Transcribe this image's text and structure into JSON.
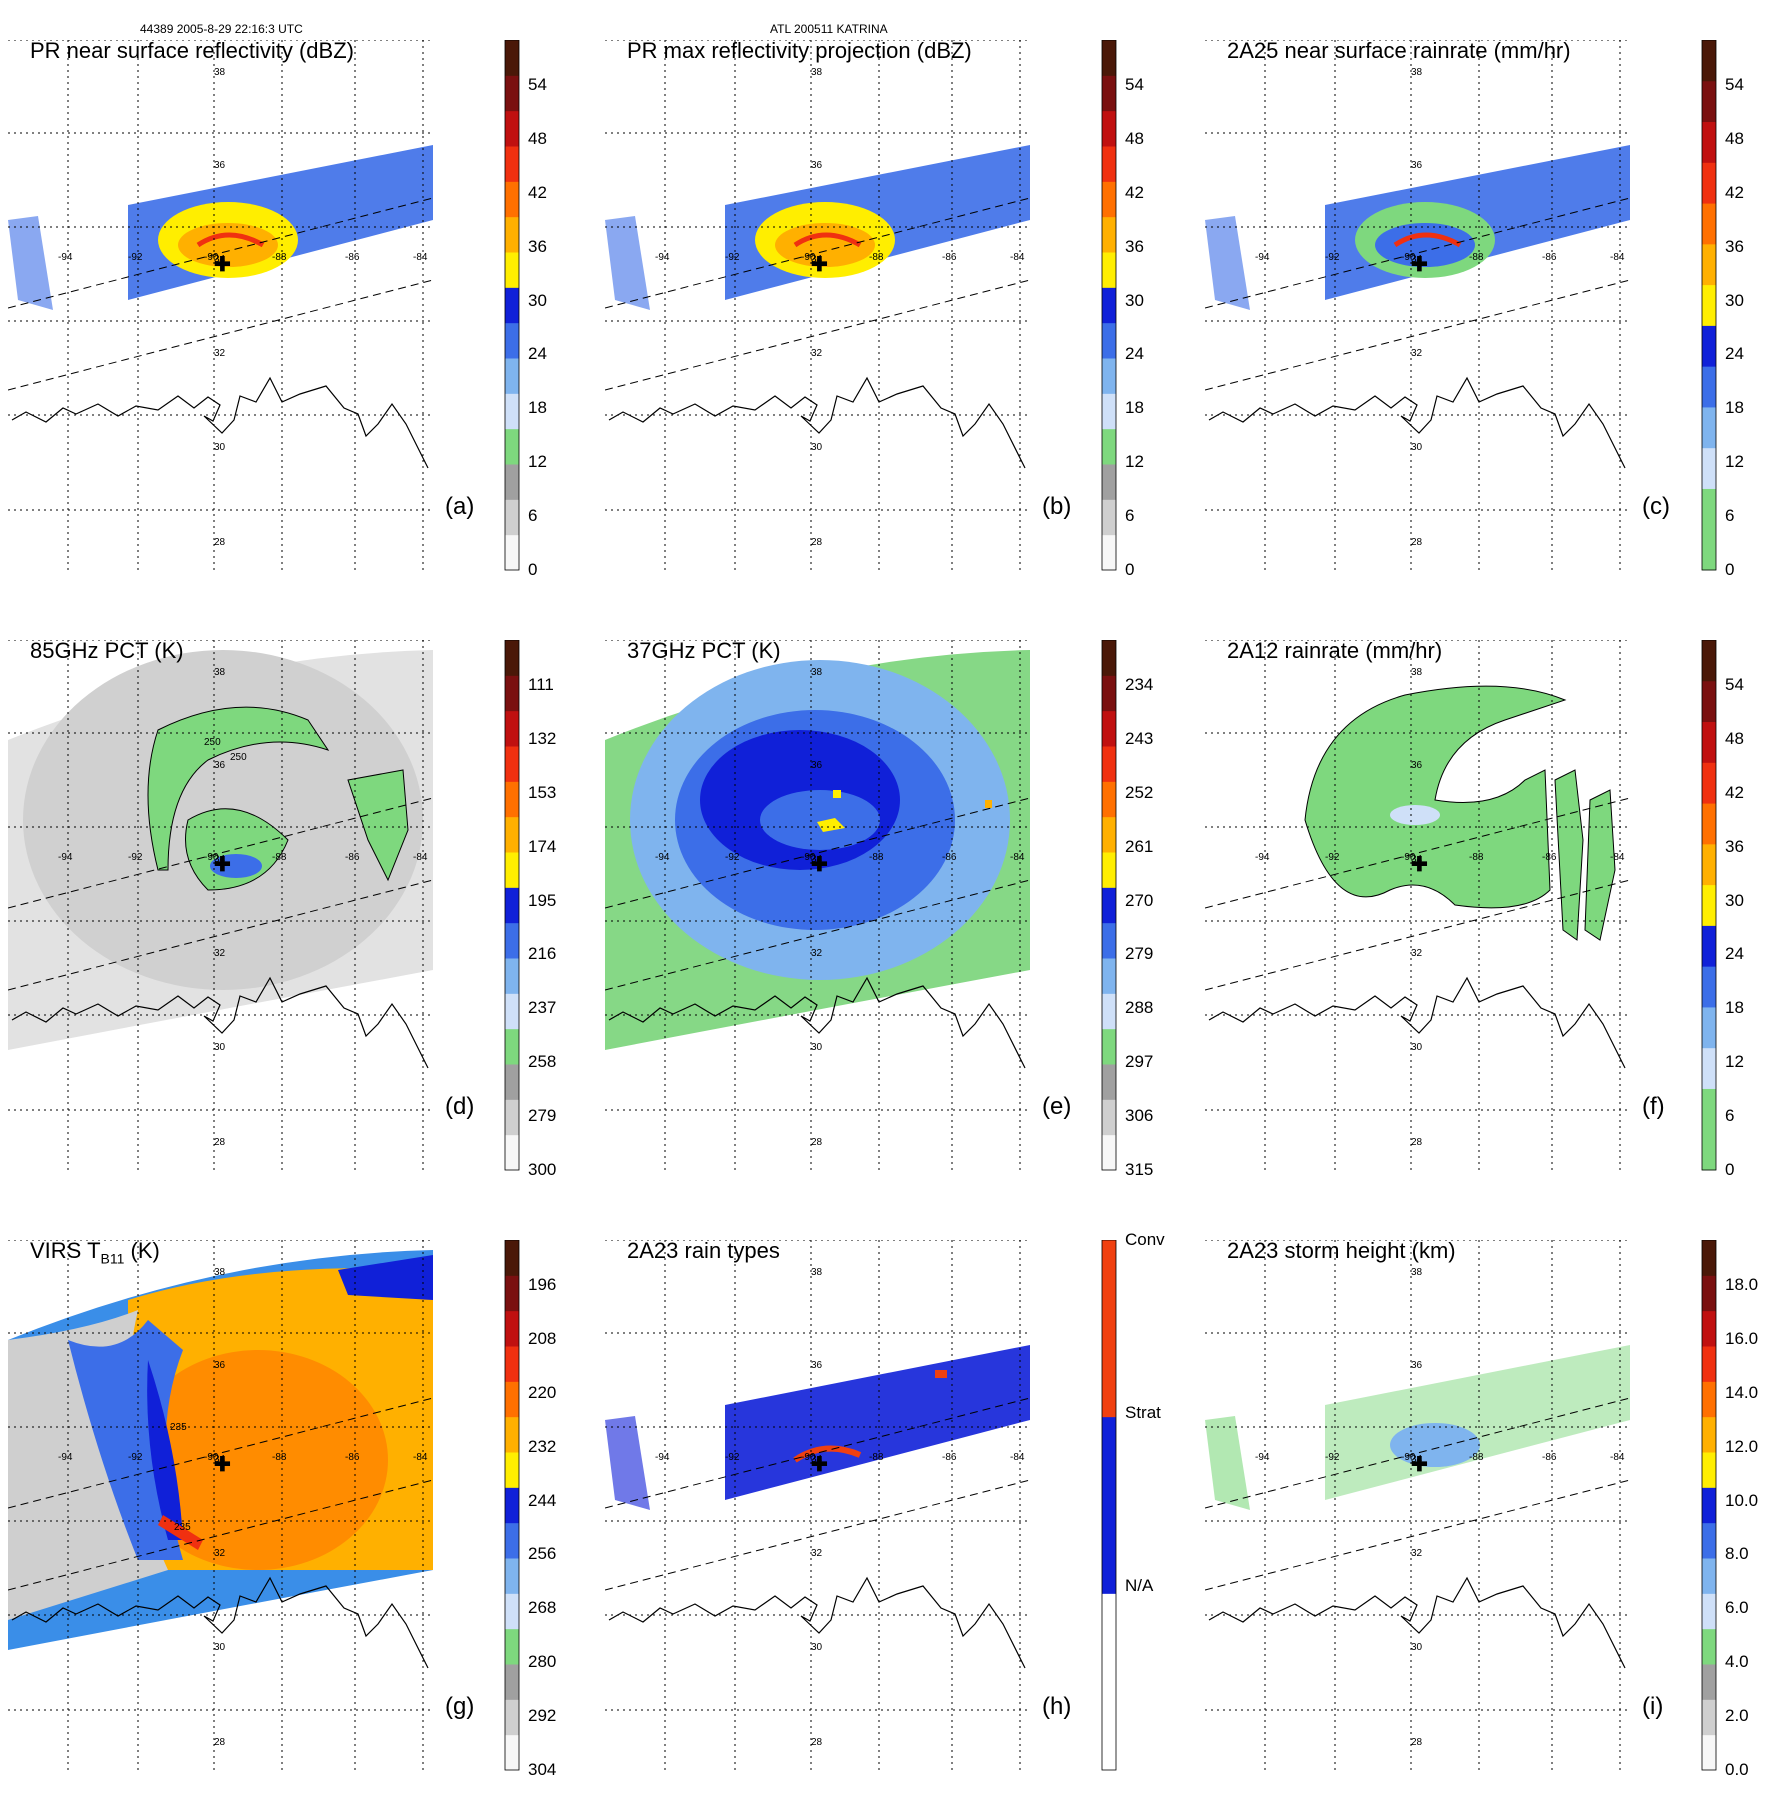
{
  "header": {
    "left": "44389 2005-8-29 22:16:3 UTC",
    "center": "ATL 200511 KATRINA"
  },
  "map": {
    "lat_labels": [
      "38",
      "36",
      "34",
      "32",
      "30",
      "28"
    ],
    "lon_labels": [
      "-94",
      "-92",
      "-90",
      "-88",
      "-86",
      "-84"
    ]
  },
  "panels": [
    {
      "id": "a",
      "title": "PR near surface reflectivity (dBZ)",
      "label": "(a)",
      "field": "swath",
      "ticks": [
        "54",
        "48",
        "42",
        "36",
        "30",
        "24",
        "18",
        "12",
        "6",
        "0"
      ],
      "colorbar": [
        "#f7f7f7",
        "#cfcfcf",
        "#a0a0a0",
        "#7ed87e",
        "#cfe0f8",
        "#7fb4ee",
        "#3c6ee8",
        "#1020d8",
        "#ffee00",
        "#ffb000",
        "#ff7000",
        "#f03010",
        "#c01010",
        "#7a1010",
        "#4a1808"
      ]
    },
    {
      "id": "b",
      "title": "PR max reflectivity projection (dBZ)",
      "label": "(b)",
      "field": "swath",
      "ticks": [
        "54",
        "48",
        "42",
        "36",
        "30",
        "24",
        "18",
        "12",
        "6",
        "0"
      ],
      "colorbar": [
        "#f7f7f7",
        "#cfcfcf",
        "#a0a0a0",
        "#7ed87e",
        "#cfe0f8",
        "#7fb4ee",
        "#3c6ee8",
        "#1020d8",
        "#ffee00",
        "#ffb000",
        "#ff7000",
        "#f03010",
        "#c01010",
        "#7a1010",
        "#4a1808"
      ]
    },
    {
      "id": "c",
      "title": "2A25 near surface rainrate (mm/hr)",
      "label": "(c)",
      "field": "swath",
      "ticks": [
        "54",
        "48",
        "42",
        "36",
        "30",
        "24",
        "18",
        "12",
        "6",
        "0"
      ],
      "colorbar": [
        "#7ed87e",
        "#7ed87e",
        "#cfe0f8",
        "#7fb4ee",
        "#3c6ee8",
        "#1020d8",
        "#ffee00",
        "#ffb000",
        "#ff7000",
        "#f03010",
        "#c01010",
        "#7a1010",
        "#4a1808"
      ]
    },
    {
      "id": "d",
      "title": "85GHz PCT (K)",
      "label": "(d)",
      "field": "wide-gray",
      "ticks": [
        "111",
        "132",
        "153",
        "174",
        "195",
        "216",
        "237",
        "258",
        "279",
        "300"
      ],
      "contour_labels": [
        "250",
        "250"
      ],
      "colorbar": [
        "#f7f7f7",
        "#cfcfcf",
        "#a0a0a0",
        "#7ed87e",
        "#cfe0f8",
        "#7fb4ee",
        "#3c6ee8",
        "#1020d8",
        "#ffee00",
        "#ffb000",
        "#ff7000",
        "#f03010",
        "#c01010",
        "#7a1010",
        "#4a1808"
      ]
    },
    {
      "id": "e",
      "title": "37GHz PCT (K)",
      "label": "(e)",
      "field": "wide-green",
      "ticks": [
        "234",
        "243",
        "252",
        "261",
        "270",
        "279",
        "288",
        "297",
        "306",
        "315"
      ],
      "colorbar": [
        "#f7f7f7",
        "#cfcfcf",
        "#a0a0a0",
        "#7ed87e",
        "#cfe0f8",
        "#7fb4ee",
        "#3c6ee8",
        "#1020d8",
        "#ffee00",
        "#ffb000",
        "#ff7000",
        "#f03010",
        "#c01010",
        "#7a1010",
        "#4a1808"
      ]
    },
    {
      "id": "f",
      "title": "2A12 rainrate (mm/hr)",
      "label": "(f)",
      "field": "blob-green",
      "ticks": [
        "54",
        "48",
        "42",
        "36",
        "30",
        "24",
        "18",
        "12",
        "6",
        "0"
      ],
      "colorbar": [
        "#7ed87e",
        "#7ed87e",
        "#cfe0f8",
        "#7fb4ee",
        "#3c6ee8",
        "#1020d8",
        "#ffee00",
        "#ffb000",
        "#ff7000",
        "#f03010",
        "#c01010",
        "#7a1010",
        "#4a1808"
      ]
    },
    {
      "id": "g",
      "title": "VIRS T",
      "title_sub": "B11",
      "title_suffix": " (K)",
      "label": "(g)",
      "field": "wide-orange",
      "ticks": [
        "196",
        "208",
        "220",
        "232",
        "244",
        "256",
        "268",
        "280",
        "292",
        "304"
      ],
      "contour_labels": [
        "235",
        "235"
      ],
      "colorbar": [
        "#f7f7f7",
        "#cfcfcf",
        "#a0a0a0",
        "#7ed87e",
        "#cfe0f8",
        "#7fb4ee",
        "#3c6ee8",
        "#1020d8",
        "#ffee00",
        "#ffb000",
        "#ff7000",
        "#f03010",
        "#c01010",
        "#7a1010",
        "#4a1808"
      ]
    },
    {
      "id": "h",
      "title": "2A23 rain types",
      "label": "(h)",
      "field": "swath-types",
      "ticks": [
        "Conv",
        "Strat",
        "N/A"
      ],
      "colorbar": [
        "#ffffff",
        "#1020d8",
        "#f04010"
      ]
    },
    {
      "id": "i",
      "title": "2A23 storm height (km)",
      "label": "(i)",
      "field": "swath-height",
      "ticks": [
        "18.0",
        "16.0",
        "14.0",
        "12.0",
        "10.0",
        "8.0",
        "6.0",
        "4.0",
        "2.0",
        "0.0"
      ],
      "colorbar": [
        "#f7f7f7",
        "#cfcfcf",
        "#a0a0a0",
        "#7ed87e",
        "#cfe0f8",
        "#7fb4ee",
        "#3c6ee8",
        "#1020d8",
        "#ffee00",
        "#ffb000",
        "#ff7000",
        "#f03010",
        "#c01010",
        "#7a1010",
        "#4a1808"
      ]
    }
  ]
}
